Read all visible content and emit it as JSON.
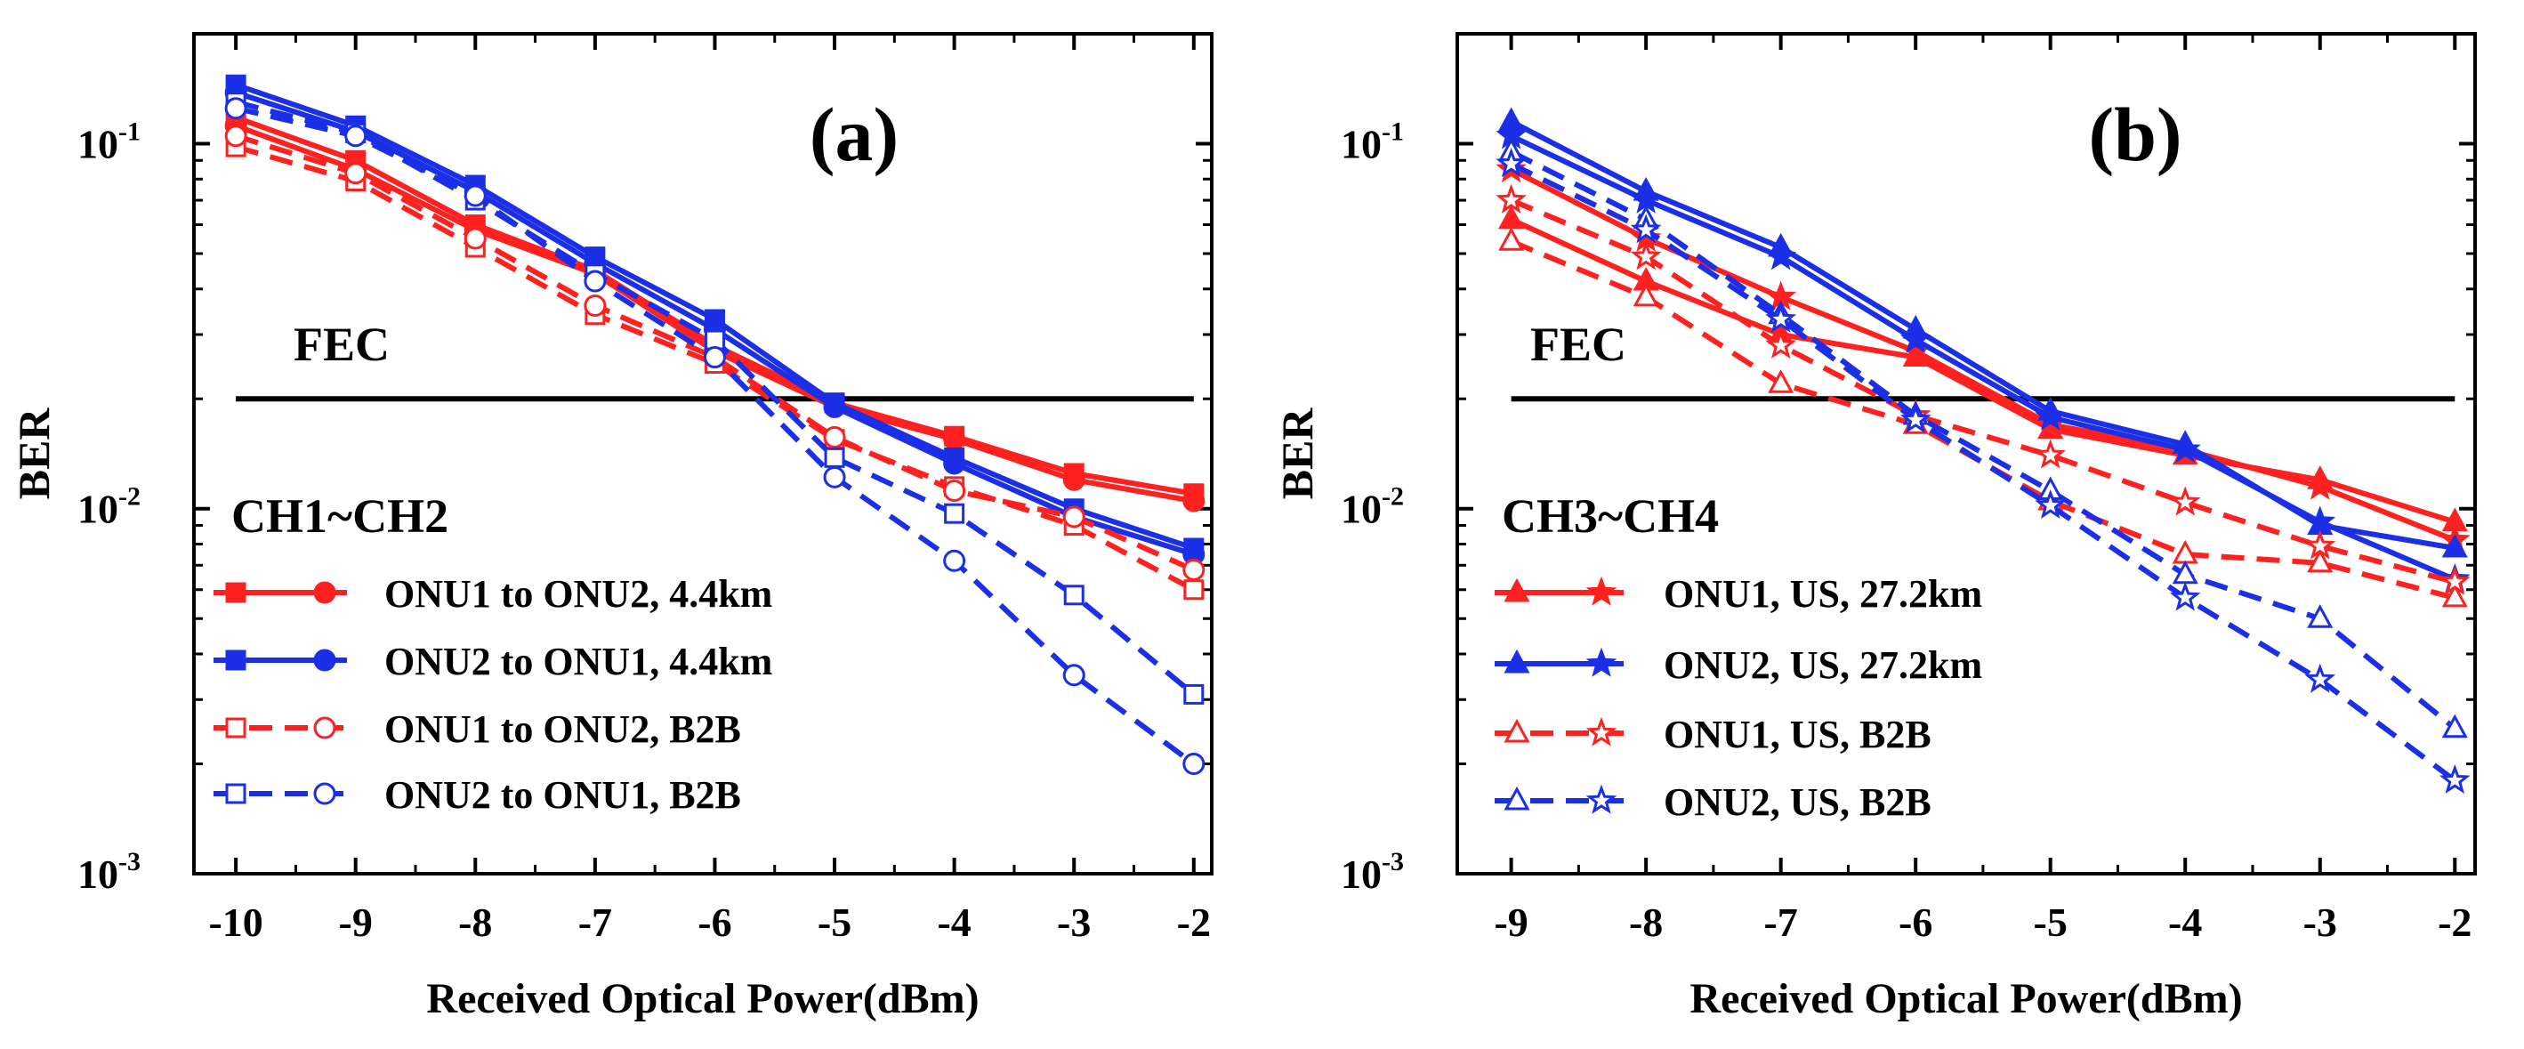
{
  "colors": {
    "red": "#ff2020",
    "blue": "#1a2fe6",
    "axis": "#000000",
    "fec": "#000000"
  },
  "chart_data": [
    {
      "type": "line",
      "panel": "(a)",
      "xlabel": "Received Optical Power(dBm)",
      "ylabel": "BER",
      "yscale": "log",
      "xlim": [
        -10.35,
        -1.85
      ],
      "ylim": [
        0.001,
        0.2
      ],
      "xticks": [
        -10,
        -9,
        -8,
        -7,
        -6,
        -5,
        -4,
        -3,
        -2
      ],
      "xtick_labels": [
        "-10",
        "-9",
        "-8",
        "-7",
        "-6",
        "-5",
        "-4",
        "-3",
        "-2"
      ],
      "yticks": [
        {
          "value": 0.1,
          "base": "10",
          "exp": "-1"
        },
        {
          "value": 0.01,
          "base": "10",
          "exp": "-2"
        },
        {
          "value": 0.001,
          "base": "10",
          "exp": "-3"
        }
      ],
      "fec": {
        "label": "FEC",
        "value": 0.02,
        "x_range": [
          -10,
          -2
        ]
      },
      "group_label": "CH1~CH2",
      "legend": [
        {
          "label": "ONU1 to ONU2, 4.4km",
          "color": "#ff2020",
          "dash": "solid",
          "markers": [
            "square-filled",
            "circle-filled"
          ]
        },
        {
          "label": "ONU2 to ONU1, 4.4km",
          "color": "#1a2fe6",
          "dash": "solid",
          "markers": [
            "square-filled",
            "circle-filled"
          ]
        },
        {
          "label": "ONU1 to ONU2, B2B",
          "color": "#ff2020",
          "dash": "dashed",
          "markers": [
            "square-open",
            "circle-open"
          ]
        },
        {
          "label": "ONU2 to ONU1, B2B",
          "color": "#1a2fe6",
          "dash": "dashed",
          "markers": [
            "square-open",
            "circle-open"
          ]
        }
      ],
      "x": [
        -10,
        -9,
        -8,
        -7,
        -6,
        -5,
        -4,
        -3,
        -2
      ],
      "series": [
        {
          "name": "ONU1 to ONU2, 4.4km CH1",
          "color": "#ff2020",
          "dash": "solid",
          "marker": "square-filled",
          "values": [
            0.118,
            0.09,
            0.06,
            0.045,
            0.028,
            0.0195,
            0.0158,
            0.0125,
            0.011
          ]
        },
        {
          "name": "ONU1 to ONU2, 4.4km CH2",
          "color": "#ff2020",
          "dash": "solid",
          "marker": "circle-filled",
          "values": [
            0.112,
            0.085,
            0.058,
            0.044,
            0.027,
            0.019,
            0.0155,
            0.012,
            0.0105
          ]
        },
        {
          "name": "ONU2 to ONU1, 4.4km CH1",
          "color": "#1a2fe6",
          "dash": "solid",
          "marker": "square-filled",
          "values": [
            0.145,
            0.112,
            0.077,
            0.049,
            0.033,
            0.0195,
            0.0138,
            0.01,
            0.0078
          ]
        },
        {
          "name": "ONU2 to ONU1, 4.4km CH2",
          "color": "#1a2fe6",
          "dash": "solid",
          "marker": "circle-filled",
          "values": [
            0.138,
            0.108,
            0.074,
            0.047,
            0.031,
            0.019,
            0.0133,
            0.0095,
            0.0075
          ]
        },
        {
          "name": "ONU1 to ONU2, B2B CH1",
          "color": "#ff2020",
          "dash": "dashed",
          "marker": "square-open",
          "values": [
            0.098,
            0.079,
            0.052,
            0.034,
            0.025,
            0.0155,
            0.0115,
            0.009,
            0.006
          ]
        },
        {
          "name": "ONU1 to ONU2, B2B CH2",
          "color": "#ff2020",
          "dash": "dashed",
          "marker": "circle-open",
          "values": [
            0.105,
            0.083,
            0.055,
            0.036,
            0.026,
            0.0157,
            0.0112,
            0.0095,
            0.0068
          ]
        },
        {
          "name": "ONU2 to ONU1, B2B CH1",
          "color": "#1a2fe6",
          "dash": "dashed",
          "marker": "square-open",
          "values": [
            0.13,
            0.107,
            0.07,
            0.044,
            0.029,
            0.0138,
            0.0097,
            0.0058,
            0.0031
          ]
        },
        {
          "name": "ONU2 to ONU1, B2B CH2",
          "color": "#1a2fe6",
          "dash": "dashed",
          "marker": "circle-open",
          "values": [
            0.125,
            0.105,
            0.072,
            0.042,
            0.026,
            0.0122,
            0.0072,
            0.0035,
            0.002
          ]
        }
      ]
    },
    {
      "type": "line",
      "panel": "(b)",
      "xlabel": "Received Optical Power(dBm)",
      "ylabel": "BER",
      "yscale": "log",
      "xlim": [
        -9.4,
        -1.85
      ],
      "ylim": [
        0.001,
        0.2
      ],
      "xticks": [
        -9,
        -8,
        -7,
        -6,
        -5,
        -4,
        -3,
        -2
      ],
      "xtick_labels": [
        "-9",
        "-8",
        "-7",
        "-6",
        "-5",
        "-4",
        "-3",
        "-2"
      ],
      "yticks": [
        {
          "value": 0.1,
          "base": "10",
          "exp": "-1"
        },
        {
          "value": 0.01,
          "base": "10",
          "exp": "-2"
        },
        {
          "value": 0.001,
          "base": "10",
          "exp": "-3"
        }
      ],
      "fec": {
        "label": "FEC",
        "value": 0.02,
        "x_range": [
          -9,
          -2
        ]
      },
      "group_label": "CH3~CH4",
      "legend": [
        {
          "label": "ONU1, US, 27.2km",
          "color": "#ff2020",
          "dash": "solid",
          "markers": [
            "triangle-filled",
            "star-filled"
          ]
        },
        {
          "label": "ONU2, US, 27.2km",
          "color": "#1a2fe6",
          "dash": "solid",
          "markers": [
            "triangle-filled",
            "star-filled"
          ]
        },
        {
          "label": "ONU1, US, B2B",
          "color": "#ff2020",
          "dash": "dashed",
          "markers": [
            "triangle-open",
            "star-open"
          ]
        },
        {
          "label": "ONU2, US, B2B",
          "color": "#1a2fe6",
          "dash": "dashed",
          "markers": [
            "triangle-open",
            "star-open"
          ]
        }
      ],
      "x": [
        -9,
        -8,
        -7,
        -6,
        -5,
        -4,
        -3,
        -2
      ],
      "series": [
        {
          "name": "ONU1, US, 27.2km CH3",
          "color": "#ff2020",
          "dash": "solid",
          "marker": "triangle-filled",
          "values": [
            0.062,
            0.042,
            0.03,
            0.026,
            0.0165,
            0.014,
            0.012,
            0.0092
          ]
        },
        {
          "name": "ONU1, US, 27.2km CH4",
          "color": "#ff2020",
          "dash": "solid",
          "marker": "star-filled",
          "values": [
            0.085,
            0.055,
            0.038,
            0.027,
            0.017,
            0.0145,
            0.0115,
            0.0082
          ]
        },
        {
          "name": "ONU2, US, 27.2km CH3",
          "color": "#1a2fe6",
          "dash": "solid",
          "marker": "triangle-filled",
          "values": [
            0.115,
            0.074,
            0.052,
            0.031,
            0.0185,
            0.015,
            0.009,
            0.0078
          ]
        },
        {
          "name": "ONU2, US, 27.2km CH4",
          "color": "#1a2fe6",
          "dash": "solid",
          "marker": "star-filled",
          "values": [
            0.105,
            0.07,
            0.049,
            0.029,
            0.0178,
            0.0145,
            0.0092,
            0.0064
          ]
        },
        {
          "name": "ONU1, US, B2B CH3",
          "color": "#ff2020",
          "dash": "dashed",
          "marker": "triangle-open",
          "values": [
            0.054,
            0.038,
            0.022,
            0.017,
            0.0105,
            0.0075,
            0.0071,
            0.0057
          ]
        },
        {
          "name": "ONU1, US, B2B CH4",
          "color": "#ff2020",
          "dash": "dashed",
          "marker": "star-open",
          "values": [
            0.07,
            0.049,
            0.028,
            0.018,
            0.014,
            0.0104,
            0.0079,
            0.0063
          ]
        },
        {
          "name": "ONU2, US, B2B CH3",
          "color": "#1a2fe6",
          "dash": "dashed",
          "marker": "triangle-open",
          "values": [
            0.095,
            0.062,
            0.034,
            0.018,
            0.0112,
            0.0066,
            0.005,
            0.0025
          ]
        },
        {
          "name": "ONU2, US, B2B CH4",
          "color": "#1a2fe6",
          "dash": "dashed",
          "marker": "star-open",
          "values": [
            0.088,
            0.058,
            0.033,
            0.0175,
            0.0102,
            0.0057,
            0.0034,
            0.0018
          ]
        }
      ]
    }
  ]
}
